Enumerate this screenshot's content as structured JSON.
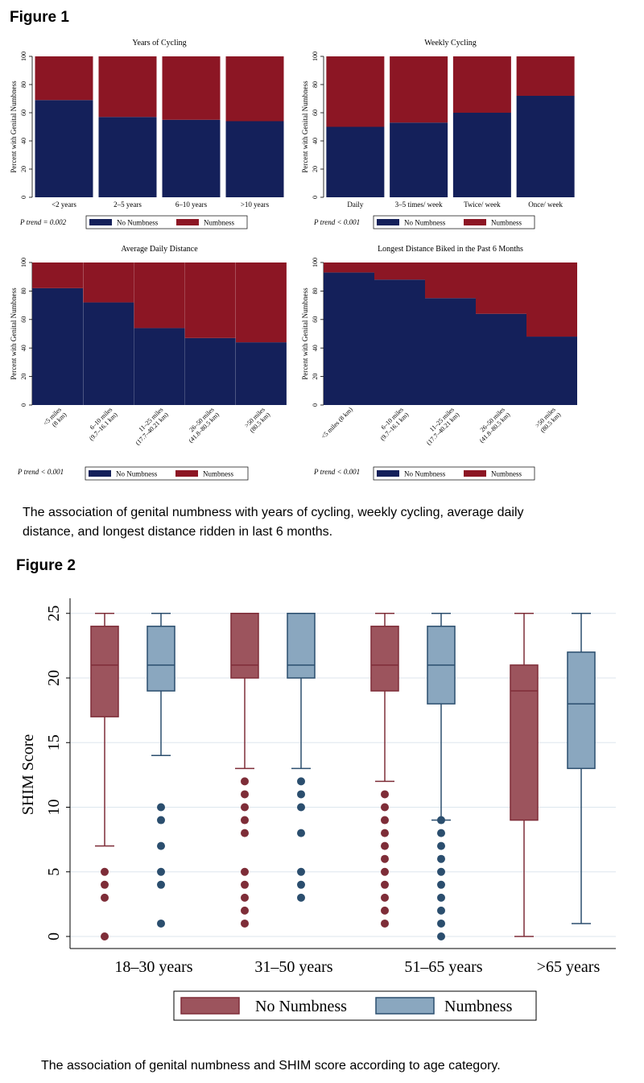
{
  "figure1": {
    "label": "Figure 1",
    "caption_line1": "The association of genital numbness with years of cycling, weekly cycling, average daily",
    "caption_line2": "distance, and longest distance ridden in last 6 months.",
    "colors": {
      "no_numbness": "#14205a",
      "numbness": "#8c1624"
    }
  },
  "figure2": {
    "label": "Figure 2",
    "caption": "The association of genital numbness and SHIM score according to age category.",
    "colors": {
      "no_numbness": "#9c545d",
      "numbness": "#8aa7bf",
      "no_numbness_edge": "#7e2d38",
      "numbness_edge": "#2b4e6e",
      "grid": "#dde6ee"
    }
  },
  "chart_data": [
    {
      "type": "bar",
      "stacked": true,
      "title": "Years of Cycling",
      "ylabel": "Percent with Genital Numbness",
      "ylim": [
        0,
        100
      ],
      "yticks": [
        0,
        20,
        40,
        60,
        80,
        100
      ],
      "categories": [
        "<2 years",
        "2–5 years",
        "6–10 years",
        ">10 years"
      ],
      "series": [
        {
          "name": "No Numbness",
          "values": [
            69,
            57,
            55,
            54
          ]
        },
        {
          "name": "Numbness",
          "values": [
            31,
            43,
            45,
            46
          ]
        }
      ],
      "annotation": "P trend = 0.002",
      "legend_position": "bottom"
    },
    {
      "type": "bar",
      "stacked": true,
      "title": "Weekly Cycling",
      "ylabel": "Percent with Genital Numbness",
      "ylim": [
        0,
        100
      ],
      "yticks": [
        0,
        20,
        40,
        60,
        80,
        100
      ],
      "categories": [
        "Daily",
        "3–5 times/ week",
        "Twice/ week",
        "Once/ week"
      ],
      "series": [
        {
          "name": "No Numbness",
          "values": [
            50,
            53,
            60,
            72
          ]
        },
        {
          "name": "Numbness",
          "values": [
            50,
            47,
            40,
            28
          ]
        }
      ],
      "annotation": "P trend < 0.001",
      "legend_position": "bottom"
    },
    {
      "type": "bar",
      "stacked": true,
      "title": "Average Daily Distance",
      "ylabel": "Percent with Genital Numbness",
      "ylim": [
        0,
        100
      ],
      "yticks": [
        0,
        20,
        40,
        60,
        80,
        100
      ],
      "categories": [
        {
          "line1": "<5 miles",
          "line2": "(8 km)"
        },
        {
          "line1": "6–10 miles",
          "line2": "(9.7–16.1 km)"
        },
        {
          "line1": "11–25 miles",
          "line2": "(17.7–40.21 km)"
        },
        {
          "line1": "26–50 miles",
          "line2": "(41.8–80.5 km)"
        },
        {
          "line1": ">50 miles",
          "line2": "(80.5 km)"
        }
      ],
      "series": [
        {
          "name": "No Numbness",
          "values": [
            82,
            72,
            54,
            47,
            44
          ]
        },
        {
          "name": "Numbness",
          "values": [
            18,
            28,
            46,
            53,
            56
          ]
        }
      ],
      "annotation": "P trend < 0.001",
      "legend_position": "bottom"
    },
    {
      "type": "bar",
      "stacked": true,
      "title": "Longest Distance Biked in the Past 6 Months",
      "ylabel": "Percent with Genital Numbness",
      "ylim": [
        0,
        100
      ],
      "yticks": [
        0,
        20,
        40,
        60,
        80,
        100
      ],
      "categories": [
        {
          "line1": "<5 miles (8 km)",
          "line2": ""
        },
        {
          "line1": "6–10 miles",
          "line2": "(9.7–16.1 km)"
        },
        {
          "line1": "11–25 miles",
          "line2": "(17.7–40.21 km)"
        },
        {
          "line1": "26–50 miles",
          "line2": "(41.8–80.5 km)"
        },
        {
          "line1": ">50 miles",
          "line2": "(80.5 km)"
        }
      ],
      "series": [
        {
          "name": "No Numbness",
          "values": [
            93,
            88,
            75,
            64,
            48
          ]
        },
        {
          "name": "Numbness",
          "values": [
            7,
            12,
            25,
            36,
            52
          ]
        }
      ],
      "annotation": "P trend < 0.001",
      "legend_position": "bottom"
    },
    {
      "type": "box",
      "ylabel": "SHIM Score",
      "ylim": [
        0,
        25
      ],
      "yticks": [
        0,
        5,
        10,
        15,
        20,
        25
      ],
      "grid": true,
      "categories": [
        "18–30 years",
        "31–50 years",
        "51–65 years",
        ">65 years"
      ],
      "series": [
        {
          "name": "No Numbness",
          "boxes": [
            {
              "whisker_low": 7,
              "q1": 17,
              "median": 21,
              "q3": 24,
              "whisker_high": 25,
              "outliers": [
                0,
                3,
                4,
                5
              ]
            },
            {
              "whisker_low": 13,
              "q1": 20,
              "median": 21,
              "q3": 25,
              "whisker_high": 25,
              "outliers": [
                1,
                2,
                3,
                4,
                5,
                8,
                9,
                10,
                11,
                12
              ]
            },
            {
              "whisker_low": 12,
              "q1": 19,
              "median": 21,
              "q3": 24,
              "whisker_high": 25,
              "outliers": [
                1,
                2,
                3,
                4,
                5,
                6,
                7,
                8,
                9,
                10,
                11
              ]
            },
            {
              "whisker_low": 0,
              "q1": 9,
              "median": 19,
              "q3": 21,
              "whisker_high": 25,
              "outliers": []
            }
          ]
        },
        {
          "name": "Numbness",
          "boxes": [
            {
              "whisker_low": 14,
              "q1": 19,
              "median": 21,
              "q3": 24,
              "whisker_high": 25,
              "outliers": [
                1,
                4,
                5,
                7,
                9,
                10
              ]
            },
            {
              "whisker_low": 13,
              "q1": 20,
              "median": 21,
              "q3": 25,
              "whisker_high": 25,
              "outliers": [
                3,
                4,
                5,
                8,
                10,
                11,
                12
              ]
            },
            {
              "whisker_low": 9,
              "q1": 18,
              "median": 21,
              "q3": 24,
              "whisker_high": 25,
              "outliers": [
                0,
                1,
                2,
                3,
                4,
                5,
                6,
                7,
                8,
                9
              ]
            },
            {
              "whisker_low": 1,
              "q1": 13,
              "median": 18,
              "q3": 22,
              "whisker_high": 25,
              "outliers": []
            }
          ]
        }
      ],
      "legend_position": "bottom"
    }
  ]
}
